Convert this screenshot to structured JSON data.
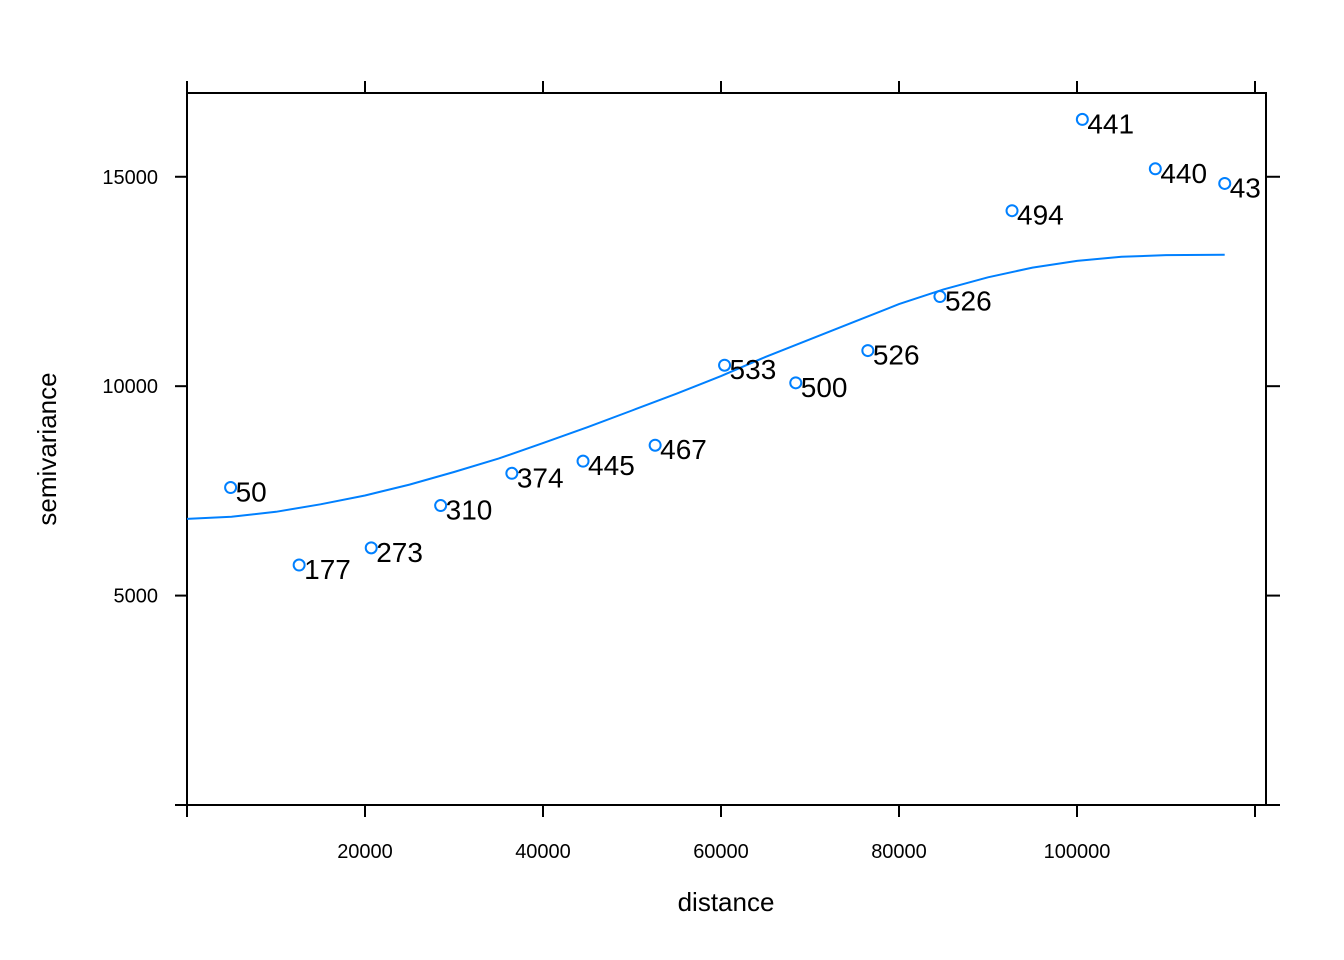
{
  "chart_data": {
    "type": "scatter",
    "title": "",
    "xlabel": "distance",
    "ylabel": "semivariance",
    "xlim": [
      0,
      120500
    ],
    "ylim": [
      0,
      17000
    ],
    "x_ticks": [
      20000,
      40000,
      60000,
      80000,
      100000
    ],
    "x_top_ticks": [
      0,
      20000,
      40000,
      60000,
      80000,
      100000,
      120000
    ],
    "y_ticks": [
      5000,
      10000,
      15000
    ],
    "grid": false,
    "point_color": "#0080ff",
    "line_color": "#0080ff",
    "points": [
      {
        "x": 4900,
        "y": 7580,
        "label": "50"
      },
      {
        "x": 12600,
        "y": 5730,
        "label": "177"
      },
      {
        "x": 20700,
        "y": 6140,
        "label": "273"
      },
      {
        "x": 28500,
        "y": 7150,
        "label": "310"
      },
      {
        "x": 36500,
        "y": 7920,
        "label": "374"
      },
      {
        "x": 44500,
        "y": 8210,
        "label": "445"
      },
      {
        "x": 52600,
        "y": 8590,
        "label": "467"
      },
      {
        "x": 60400,
        "y": 10500,
        "label": "533"
      },
      {
        "x": 68400,
        "y": 10080,
        "label": "500"
      },
      {
        "x": 76500,
        "y": 10850,
        "label": "526"
      },
      {
        "x": 84600,
        "y": 12140,
        "label": "526"
      },
      {
        "x": 92700,
        "y": 14190,
        "label": "494"
      },
      {
        "x": 100600,
        "y": 16370,
        "label": "441"
      },
      {
        "x": 108800,
        "y": 15190,
        "label": "440"
      },
      {
        "x": 116600,
        "y": 14840,
        "label": "43"
      }
    ],
    "fitted_line": {
      "x": [
        0,
        5000,
        10000,
        15000,
        20000,
        25000,
        30000,
        35000,
        40000,
        45000,
        50000,
        55000,
        60000,
        65000,
        70000,
        75000,
        80000,
        85000,
        90000,
        95000,
        100000,
        105000,
        110000,
        116600
      ],
      "y": [
        6830,
        6880,
        7000,
        7180,
        7390,
        7650,
        7950,
        8270,
        8640,
        9020,
        9420,
        9820,
        10240,
        10700,
        11120,
        11540,
        11960,
        12310,
        12600,
        12830,
        12990,
        13090,
        13130,
        13140
      ]
    }
  }
}
